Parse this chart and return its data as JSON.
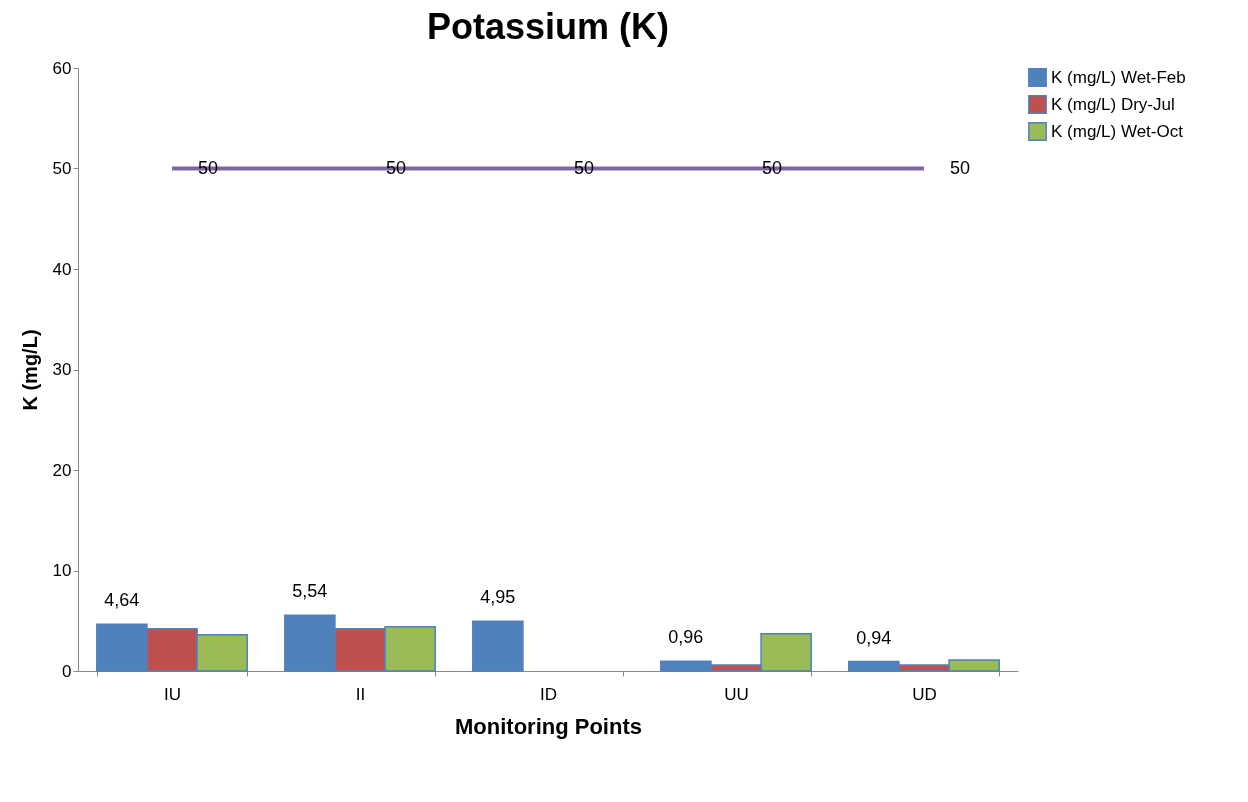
{
  "chart_data": {
    "type": "bar",
    "title": "Potassium (K)",
    "xlabel": "Monitoring Points",
    "ylabel": "K (mg/L)",
    "categories": [
      "IU",
      "II",
      "ID",
      "UU",
      "UD"
    ],
    "series": [
      {
        "name": "K (mg/L) Wet-Feb",
        "color": "#4f81bd",
        "values": [
          4.64,
          5.54,
          4.95,
          0.96,
          0.94
        ],
        "value_labels": [
          "4,64",
          "5,54",
          "4,95",
          "0,96",
          "0,94"
        ]
      },
      {
        "name": "K (mg/L) Dry-Jul",
        "color": "#c0504d",
        "values": [
          4.2,
          4.2,
          null,
          0.6,
          0.6
        ]
      },
      {
        "name": "K (mg/L) Wet-Oct",
        "color": "#9bbb59",
        "values": [
          3.6,
          4.4,
          null,
          3.7,
          1.1
        ]
      },
      {
        "type": "line",
        "color": "#8064a2",
        "values": [
          50,
          50,
          50,
          50,
          50
        ],
        "value_labels": [
          "50",
          "50",
          "50",
          "50",
          "50"
        ]
      }
    ],
    "ylim": [
      0,
      60
    ],
    "yticks": [
      0,
      10,
      20,
      30,
      40,
      50,
      60
    ],
    "grid": false,
    "legend": "right"
  }
}
